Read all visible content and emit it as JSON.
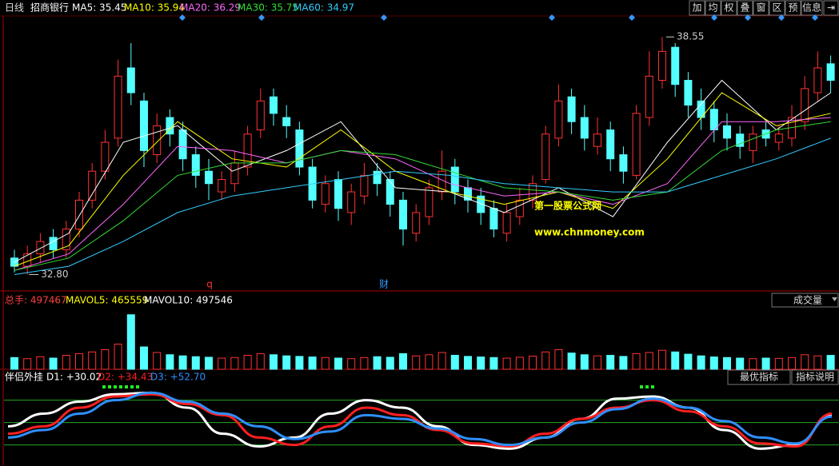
{
  "header": {
    "period": "日线",
    "stock": "招商银行",
    "ma_legend": [
      {
        "text": "MA5: 35.45",
        "color": "#ffffff"
      },
      {
        "text": "MA10: 35.94",
        "color": "#ffff00"
      },
      {
        "text": "MA20: 36.29",
        "color": "#ff66ff"
      },
      {
        "text": "MA30: 35.75",
        "color": "#33dd33"
      },
      {
        "text": "MA60: 34.97",
        "color": "#33ccff"
      }
    ],
    "toolbar": [
      "加",
      "均",
      "权",
      "叠",
      "窗",
      "区",
      "预",
      "信息"
    ]
  },
  "chart_data": [
    {
      "type": "candlestick",
      "ylim": [
        32.48,
        38.96
      ],
      "up_color": "#ff3232",
      "down_color": "#54ffff",
      "open": [
        33.2,
        33.0,
        33.3,
        33.7,
        33.4,
        33.9,
        34.6,
        35.3,
        36.1,
        37.8,
        37.0,
        35.7,
        36.6,
        36.3,
        35.7,
        35.3,
        34.8,
        35.0,
        35.4,
        36.3,
        37.1,
        36.6,
        36.3,
        35.4,
        34.5,
        35.1,
        34.3,
        34.7,
        35.3,
        35.1,
        34.6,
        33.8,
        34.2,
        34.8,
        35.4,
        34.9,
        34.7,
        34.4,
        33.8,
        34.2,
        34.6,
        35.1,
        36.1,
        37.1,
        36.6,
        35.9,
        36.3,
        35.7,
        35.2,
        36.6,
        37.5,
        38.3,
        37.5,
        37.0,
        36.8,
        36.4,
        36.2,
        35.8,
        36.3,
        36.0,
        36.1,
        36.5,
        37.2,
        37.9
      ],
      "high": [
        33.4,
        33.5,
        33.8,
        33.9,
        34.1,
        34.8,
        35.5,
        36.3,
        38.0,
        38.4,
        37.2,
        36.7,
        36.8,
        36.5,
        35.9,
        35.6,
        35.3,
        35.8,
        36.4,
        37.3,
        37.3,
        36.9,
        36.5,
        35.6,
        35.2,
        35.3,
        35.0,
        35.5,
        35.5,
        35.3,
        34.8,
        34.5,
        35.1,
        35.8,
        35.6,
        35.1,
        34.9,
        34.6,
        34.5,
        34.9,
        35.2,
        36.4,
        37.4,
        37.3,
        36.9,
        36.6,
        36.5,
        35.9,
        36.9,
        38.2,
        38.55,
        38.4,
        37.7,
        37.3,
        37.0,
        36.7,
        36.4,
        36.4,
        36.5,
        36.4,
        36.9,
        37.6,
        38.2,
        38.1
      ],
      "low": [
        32.85,
        32.8,
        33.1,
        33.2,
        33.2,
        33.7,
        34.4,
        35.1,
        35.9,
        36.9,
        35.4,
        35.5,
        35.9,
        35.3,
        34.9,
        34.6,
        34.6,
        34.8,
        35.2,
        36.1,
        36.4,
        36.1,
        35.2,
        34.4,
        34.3,
        34.1,
        34.0,
        34.5,
        34.7,
        34.2,
        33.5,
        33.6,
        34.0,
        34.6,
        34.5,
        34.3,
        34.0,
        33.7,
        33.6,
        34.0,
        34.4,
        35.0,
        35.9,
        36.2,
        35.8,
        35.7,
        35.3,
        35.0,
        35.1,
        36.4,
        37.3,
        37.1,
        36.6,
        36.3,
        36.0,
        35.8,
        35.6,
        35.5,
        35.9,
        35.8,
        35.9,
        36.3,
        37.0,
        37.2
      ],
      "close": [
        33.0,
        33.3,
        33.6,
        33.4,
        33.9,
        34.6,
        35.3,
        36.0,
        37.6,
        37.2,
        35.8,
        36.4,
        36.2,
        35.6,
        35.2,
        35.0,
        35.1,
        35.5,
        36.2,
        37.0,
        36.7,
        36.4,
        35.4,
        34.6,
        35.0,
        34.4,
        34.8,
        35.2,
        35.0,
        34.5,
        33.9,
        34.3,
        34.9,
        35.3,
        34.8,
        34.6,
        34.3,
        33.9,
        34.3,
        34.6,
        35.0,
        36.2,
        37.0,
        36.5,
        36.1,
        36.2,
        35.6,
        35.3,
        36.7,
        37.6,
        38.2,
        37.4,
        36.9,
        36.6,
        36.3,
        36.1,
        35.9,
        36.2,
        36.1,
        36.2,
        36.6,
        37.3,
        37.8,
        37.5
      ],
      "series": [
        {
          "name": "MA5",
          "color": "#ffffff",
          "values": [
            33.1,
            33.8,
            36.0,
            36.4,
            35.3,
            35.8,
            36.5,
            34.9,
            34.8,
            34.3,
            34.9,
            34.2,
            36.0,
            37.5,
            36.3,
            37.2
          ]
        },
        {
          "name": "MA10",
          "color": "#ffff00",
          "values": [
            33.0,
            33.5,
            35.2,
            36.5,
            35.6,
            35.4,
            36.3,
            35.3,
            34.8,
            34.5,
            34.8,
            34.4,
            35.6,
            37.2,
            36.4,
            36.7
          ]
        },
        {
          "name": "MA20",
          "color": "#ff66ff",
          "values": [
            32.9,
            33.3,
            34.5,
            35.9,
            35.8,
            35.5,
            35.8,
            35.6,
            35.0,
            34.7,
            34.8,
            34.5,
            35.0,
            36.5,
            36.5,
            36.6
          ]
        },
        {
          "name": "MA30",
          "color": "#33dd33",
          "values": [
            32.9,
            33.2,
            34.1,
            35.2,
            35.5,
            35.5,
            35.8,
            35.7,
            35.3,
            34.9,
            34.8,
            34.6,
            34.8,
            35.8,
            36.3,
            36.5
          ]
        },
        {
          "name": "MA60",
          "color": "#33ccff",
          "values": [
            32.8,
            33.0,
            33.6,
            34.3,
            34.7,
            34.9,
            35.1,
            35.3,
            35.2,
            35.0,
            34.9,
            34.8,
            34.8,
            35.2,
            35.6,
            36.1
          ]
        }
      ],
      "max_label": {
        "value": 38.55,
        "label": "38.55"
      },
      "min_label": {
        "value": 32.8,
        "label": "32.80"
      },
      "markers": [
        {
          "text": "q",
          "color": "#ff3030"
        },
        {
          "text": "财",
          "color": "#3399ff"
        }
      ],
      "watermark": [
        "第一股票公式网",
        "www.chnmoney.com"
      ]
    },
    {
      "type": "volume",
      "ylim": [
        0,
        2200000
      ],
      "legend": [
        {
          "text": "总手: 497467",
          "color": "#ff4040"
        },
        {
          "text": "MAVOL5: 465559",
          "color": "#ffff00"
        },
        {
          "text": "MAVOL10: 497546",
          "color": "#ffffff"
        }
      ],
      "selector": "成交量",
      "values": [
        420000,
        380000,
        450000,
        400000,
        500000,
        560000,
        620000,
        700000,
        900000,
        1950000,
        800000,
        600000,
        520000,
        480000,
        450000,
        430000,
        400000,
        420000,
        500000,
        560000,
        520000,
        480000,
        460000,
        440000,
        420000,
        400000,
        380000,
        420000,
        450000,
        430000,
        560000,
        480000,
        520000,
        600000,
        500000,
        460000,
        440000,
        420000,
        400000,
        430000,
        470000,
        620000,
        700000,
        580000,
        520000,
        480000,
        500000,
        460000,
        560000,
        600000,
        680000,
        620000,
        540000,
        480000,
        440000,
        420000,
        400000,
        380000,
        400000,
        390000,
        420000,
        520000,
        480000,
        497467
      ]
    },
    {
      "type": "line",
      "name": "伴侣外挂",
      "ylim": [
        -5,
        100
      ],
      "hlines": [
        20,
        50,
        80
      ],
      "buttons": [
        "最优指标",
        "指标说明"
      ],
      "series": [
        {
          "name": "D1: +30.02",
          "color": "#ffffff",
          "values": [
            45,
            62,
            78,
            88,
            90,
            70,
            35,
            18,
            30,
            62,
            80,
            70,
            45,
            20,
            15,
            30,
            55,
            82,
            85,
            70,
            40,
            15,
            20,
            60
          ]
        },
        {
          "name": "D2: +34.43",
          "color": "#ff2020",
          "values": [
            35,
            45,
            70,
            85,
            88,
            75,
            60,
            30,
            20,
            45,
            70,
            60,
            40,
            22,
            18,
            35,
            55,
            70,
            80,
            65,
            45,
            22,
            18,
            62
          ]
        },
        {
          "name": "D3: +52.70",
          "color": "#2f8fff",
          "values": [
            30,
            40,
            62,
            80,
            90,
            78,
            62,
            45,
            28,
            38,
            60,
            55,
            42,
            28,
            20,
            30,
            50,
            68,
            82,
            70,
            52,
            30,
            22,
            58
          ]
        }
      ]
    }
  ]
}
